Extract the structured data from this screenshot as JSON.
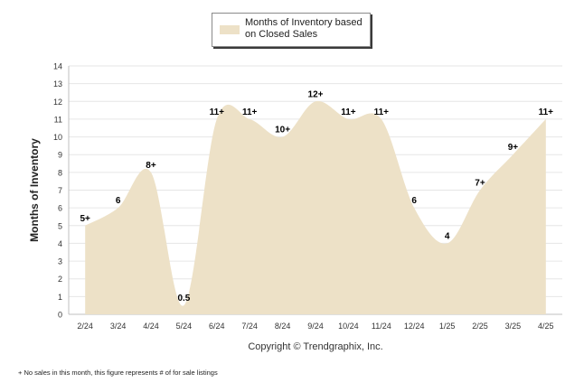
{
  "legend": {
    "label": "Months of Inventory based on Closed Sales"
  },
  "chart_data": {
    "type": "area",
    "title": "",
    "xlabel": "Copyright © Trendgraphix, Inc.",
    "ylabel": "Months of Inventory",
    "ylim": [
      0,
      14
    ],
    "yticks": [
      0,
      1,
      2,
      3,
      4,
      5,
      6,
      7,
      8,
      9,
      10,
      11,
      12,
      13,
      14
    ],
    "grid": true,
    "legend_position": "top-center",
    "fill_color": "#ede1c7",
    "categories": [
      "2/24",
      "3/24",
      "4/24",
      "5/24",
      "6/24",
      "7/24",
      "8/24",
      "9/24",
      "10/24",
      "11/24",
      "12/24",
      "1/25",
      "2/25",
      "3/25",
      "4/25"
    ],
    "series": [
      {
        "name": "Months of Inventory based on Closed Sales",
        "values": [
          5,
          6,
          8,
          0.5,
          11,
          11,
          10,
          12,
          11,
          11,
          6,
          4,
          7,
          9,
          11
        ],
        "labels": [
          "5+",
          "6",
          "8+",
          "0.5",
          "11+",
          "11+",
          "10+",
          "12+",
          "11+",
          "11+",
          "6",
          "4",
          "7+",
          "9+",
          "11+"
        ]
      }
    ]
  },
  "footnote": "+ No sales in this month, this figure represents # of for sale listings"
}
